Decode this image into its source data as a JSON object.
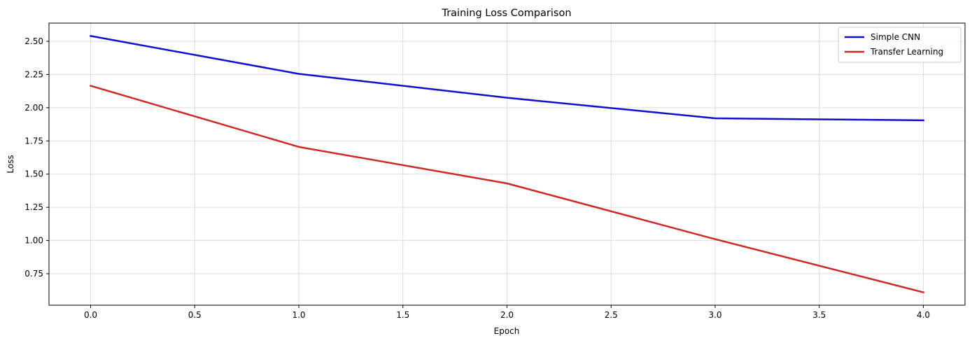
{
  "chart_data": {
    "type": "line",
    "title": "Training Loss Comparison",
    "xlabel": "Epoch",
    "ylabel": "Loss",
    "x": [
      0,
      1,
      2,
      3,
      4
    ],
    "series": [
      {
        "name": "Simple CNN",
        "values": [
          2.54,
          2.255,
          2.075,
          1.92,
          1.905
        ],
        "color": "#1010c8"
      },
      {
        "name": "Transfer Learning",
        "values": [
          2.165,
          1.705,
          1.43,
          1.01,
          0.61
        ],
        "color": "#cc2a26"
      }
    ],
    "xlim": [
      -0.2,
      4.2
    ],
    "ylim": [
      0.513,
      2.637
    ],
    "xticks": [
      0.0,
      0.5,
      1.0,
      1.5,
      2.0,
      2.5,
      3.0,
      3.5,
      4.0
    ],
    "xtick_labels": [
      "0.0",
      "0.5",
      "1.0",
      "1.5",
      "2.0",
      "2.5",
      "3.0",
      "3.5",
      "4.0"
    ],
    "yticks": [
      0.75,
      1.0,
      1.25,
      1.5,
      1.75,
      2.0,
      2.25,
      2.5
    ],
    "ytick_labels": [
      "0.75",
      "1.00",
      "1.25",
      "1.50",
      "1.75",
      "2.00",
      "2.25",
      "2.50"
    ],
    "grid": true,
    "legend_position": "top-right"
  }
}
